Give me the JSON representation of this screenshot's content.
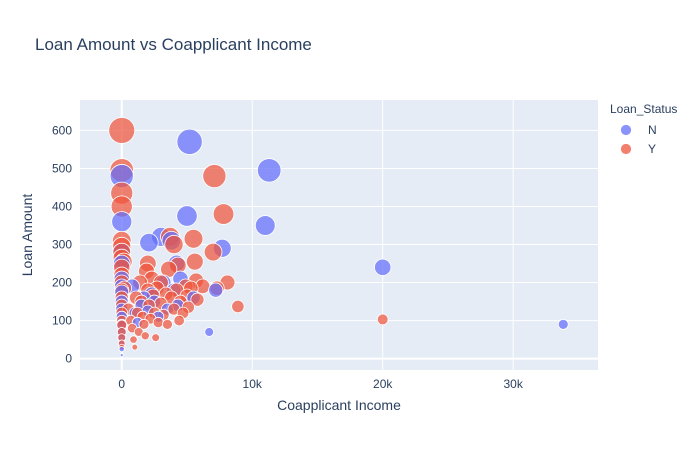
{
  "chart_data": {
    "type": "scatter",
    "title": "Loan Amount vs Coapplicant Income",
    "xlabel": "Coapplicant Income",
    "ylabel": "Loan Amount",
    "xlim": [
      -3200,
      36500
    ],
    "ylim": [
      -30,
      680
    ],
    "x_ticks": [
      0,
      10000,
      20000,
      30000
    ],
    "x_tick_labels": [
      "0",
      "10k",
      "20k",
      "30k"
    ],
    "y_ticks": [
      0,
      100,
      200,
      300,
      400,
      500,
      600
    ],
    "y_tick_labels": [
      "0",
      "100",
      "200",
      "300",
      "400",
      "500",
      "600"
    ],
    "grid": true,
    "marker_size_encodes": "Loan Amount",
    "legend": {
      "title": "Loan_Status",
      "placement": "top-right outside plot"
    },
    "series": [
      {
        "name": "N",
        "color": "#636efa",
        "points": [
          {
            "x": 0,
            "y": 9
          },
          {
            "x": 0,
            "y": 25
          },
          {
            "x": 0,
            "y": 40
          },
          {
            "x": 0,
            "y": 55
          },
          {
            "x": 0,
            "y": 70
          },
          {
            "x": 0,
            "y": 90
          },
          {
            "x": 0,
            "y": 110
          },
          {
            "x": 0,
            "y": 130
          },
          {
            "x": 0,
            "y": 150
          },
          {
            "x": 0,
            "y": 175
          },
          {
            "x": 0,
            "y": 190
          },
          {
            "x": 0,
            "y": 210
          },
          {
            "x": 0,
            "y": 250
          },
          {
            "x": 0,
            "y": 280
          },
          {
            "x": 0,
            "y": 360
          },
          {
            "x": 0,
            "y": 480
          },
          {
            "x": 800,
            "y": 190
          },
          {
            "x": 1000,
            "y": 120
          },
          {
            "x": 1200,
            "y": 95
          },
          {
            "x": 1500,
            "y": 140
          },
          {
            "x": 1700,
            "y": 160
          },
          {
            "x": 2000,
            "y": 125
          },
          {
            "x": 2083,
            "y": 305
          },
          {
            "x": 2300,
            "y": 170
          },
          {
            "x": 2500,
            "y": 150
          },
          {
            "x": 2800,
            "y": 110
          },
          {
            "x": 3000,
            "y": 320
          },
          {
            "x": 3200,
            "y": 200
          },
          {
            "x": 3500,
            "y": 130
          },
          {
            "x": 3800,
            "y": 310
          },
          {
            "x": 4000,
            "y": 180
          },
          {
            "x": 4200,
            "y": 250
          },
          {
            "x": 4500,
            "y": 210
          },
          {
            "x": 4300,
            "y": 140
          },
          {
            "x": 5000,
            "y": 375
          },
          {
            "x": 5200,
            "y": 570
          },
          {
            "x": 5500,
            "y": 160
          },
          {
            "x": 6700,
            "y": 70
          },
          {
            "x": 7200,
            "y": 180
          },
          {
            "x": 7700,
            "y": 290
          },
          {
            "x": 11000,
            "y": 350
          },
          {
            "x": 11300,
            "y": 495
          },
          {
            "x": 20000,
            "y": 240
          },
          {
            "x": 33837,
            "y": 90
          }
        ]
      },
      {
        "name": "Y",
        "color": "#ef553b",
        "points": [
          {
            "x": 0,
            "y": 600
          },
          {
            "x": 0,
            "y": 495
          },
          {
            "x": 0,
            "y": 435
          },
          {
            "x": 0,
            "y": 400
          },
          {
            "x": 0,
            "y": 310
          },
          {
            "x": 0,
            "y": 295
          },
          {
            "x": 0,
            "y": 280
          },
          {
            "x": 0,
            "y": 265
          },
          {
            "x": 0,
            "y": 240
          },
          {
            "x": 0,
            "y": 220
          },
          {
            "x": 0,
            "y": 200
          },
          {
            "x": 0,
            "y": 180
          },
          {
            "x": 0,
            "y": 160
          },
          {
            "x": 0,
            "y": 140
          },
          {
            "x": 0,
            "y": 120
          },
          {
            "x": 0,
            "y": 100
          },
          {
            "x": 0,
            "y": 88
          },
          {
            "x": 0,
            "y": 70
          },
          {
            "x": 0,
            "y": 55
          },
          {
            "x": 0,
            "y": 40
          },
          {
            "x": 0,
            "y": 30
          },
          {
            "x": 150,
            "y": 255
          },
          {
            "x": 200,
            "y": 185
          },
          {
            "x": 500,
            "y": 130
          },
          {
            "x": 700,
            "y": 100
          },
          {
            "x": 800,
            "y": 80
          },
          {
            "x": 900,
            "y": 50
          },
          {
            "x": 1000,
            "y": 30
          },
          {
            "x": 1100,
            "y": 160
          },
          {
            "x": 1200,
            "y": 120
          },
          {
            "x": 1300,
            "y": 70
          },
          {
            "x": 1400,
            "y": 200
          },
          {
            "x": 1500,
            "y": 150
          },
          {
            "x": 1600,
            "y": 110
          },
          {
            "x": 1700,
            "y": 90
          },
          {
            "x": 1800,
            "y": 60
          },
          {
            "x": 1900,
            "y": 230
          },
          {
            "x": 2000,
            "y": 180
          },
          {
            "x": 2000,
            "y": 250
          },
          {
            "x": 2100,
            "y": 140
          },
          {
            "x": 2200,
            "y": 105
          },
          {
            "x": 2300,
            "y": 210
          },
          {
            "x": 2400,
            "y": 165
          },
          {
            "x": 2500,
            "y": 120
          },
          {
            "x": 2600,
            "y": 55
          },
          {
            "x": 2700,
            "y": 185
          },
          {
            "x": 2800,
            "y": 95
          },
          {
            "x": 3000,
            "y": 200
          },
          {
            "x": 3000,
            "y": 145
          },
          {
            "x": 3200,
            "y": 115
          },
          {
            "x": 3400,
            "y": 170
          },
          {
            "x": 3500,
            "y": 90
          },
          {
            "x": 3600,
            "y": 235
          },
          {
            "x": 3700,
            "y": 320
          },
          {
            "x": 3800,
            "y": 160
          },
          {
            "x": 4000,
            "y": 300
          },
          {
            "x": 4000,
            "y": 130
          },
          {
            "x": 4200,
            "y": 180
          },
          {
            "x": 4300,
            "y": 245
          },
          {
            "x": 4400,
            "y": 100
          },
          {
            "x": 4500,
            "y": 150
          },
          {
            "x": 4700,
            "y": 120
          },
          {
            "x": 4900,
            "y": 190
          },
          {
            "x": 5000,
            "y": 165
          },
          {
            "x": 5100,
            "y": 135
          },
          {
            "x": 5300,
            "y": 185
          },
          {
            "x": 5500,
            "y": 315
          },
          {
            "x": 5600,
            "y": 255
          },
          {
            "x": 5700,
            "y": 205
          },
          {
            "x": 5800,
            "y": 155
          },
          {
            "x": 6200,
            "y": 190
          },
          {
            "x": 7000,
            "y": 280
          },
          {
            "x": 7100,
            "y": 480
          },
          {
            "x": 7300,
            "y": 185
          },
          {
            "x": 7800,
            "y": 380
          },
          {
            "x": 8100,
            "y": 200
          },
          {
            "x": 8900,
            "y": 137
          },
          {
            "x": 20000,
            "y": 103
          }
        ]
      }
    ]
  }
}
